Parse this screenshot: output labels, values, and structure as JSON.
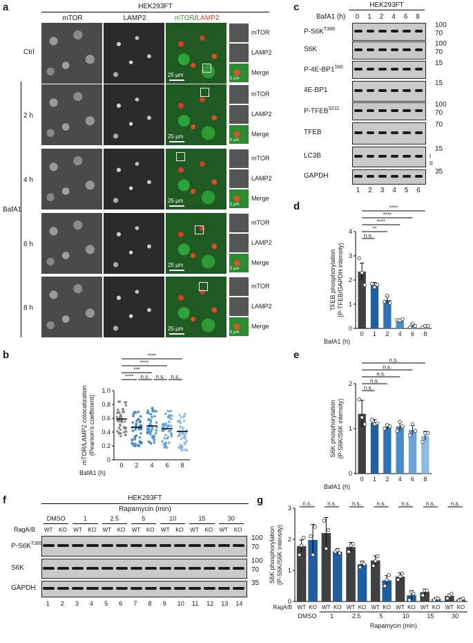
{
  "panel_labels": [
    "a",
    "b",
    "c",
    "d",
    "e",
    "f",
    "g"
  ],
  "panel_a": {
    "cell_line": "HEK293FT",
    "columns": [
      "mTOR",
      "LAMP2",
      "mTOR/LAMP2"
    ],
    "merge_parts": {
      "green": "mTOR",
      "red": "LAMP2"
    },
    "rows": [
      "Ctrl",
      "2 h",
      "4 h",
      "6 h",
      "8 h"
    ],
    "group_label": "BafA1",
    "inset_labels": [
      "mTOR",
      "LAMP2",
      "Merge"
    ],
    "scale_main": "25 µm",
    "scale_inset": "5 µm",
    "colors": {
      "green": "#2ba43a",
      "red": "#e23a2a"
    }
  },
  "panel_b": {
    "chart_data": {
      "type": "scatter",
      "categories": [
        "0",
        "2",
        "4",
        "6",
        "8"
      ],
      "xlabel": "BafA1 (h)",
      "ylabel": "mTOR/LAMP2 colocalization\n(Pearson's coefficient)",
      "ylim": [
        0,
        1.0
      ],
      "yticks": [
        "0",
        "0.2",
        "0.4",
        "0.6",
        "0.8",
        "1.0"
      ],
      "means": [
        0.59,
        0.47,
        0.49,
        0.45,
        0.41
      ],
      "colors": [
        "#7f7f7f",
        "#2b7bc4",
        "#3d8bd0",
        "#5a9ed8",
        "#7fb6e2"
      ],
      "significance": [
        {
          "from": "0",
          "to": "8",
          "label": "****"
        },
        {
          "from": "0",
          "to": "6",
          "label": "****"
        },
        {
          "from": "0",
          "to": "4",
          "label": "***"
        },
        {
          "from": "0",
          "to": "2",
          "label": "****"
        },
        {
          "from": "2",
          "to": "4",
          "label": "n.s."
        },
        {
          "from": "4",
          "to": "6",
          "label": "n.s."
        },
        {
          "from": "6",
          "to": "8",
          "label": "n.s."
        }
      ]
    }
  },
  "panel_c": {
    "cell_line": "HEK293FT",
    "header": "BafA1 (h)",
    "timepoints": [
      "0",
      "1",
      "2",
      "4",
      "6",
      "8"
    ],
    "lanes": [
      "1",
      "2",
      "3",
      "4",
      "5",
      "6"
    ],
    "blots": [
      {
        "label": "P-S6K",
        "sup": "T389",
        "mw": [
          "100",
          "70"
        ]
      },
      {
        "label": "S6K",
        "sup": "",
        "mw": [
          "100",
          "70"
        ]
      },
      {
        "label": "P-4E-BP1",
        "sup": "S65",
        "mw": [
          "15"
        ]
      },
      {
        "label": "4E-BP1",
        "sup": "",
        "mw": [
          "15"
        ]
      },
      {
        "label": "P-TFEB",
        "sup": "S211",
        "mw": [
          "100",
          "70"
        ]
      },
      {
        "label": "TFEB",
        "sup": "",
        "mw": [
          "70"
        ]
      },
      {
        "label": "LC3B",
        "sup": "",
        "mw": [
          "15"
        ]
      },
      {
        "label": "GAPDH",
        "sup": "",
        "mw": [
          "35"
        ]
      }
    ],
    "lc3_annot": [
      "I",
      "II"
    ]
  },
  "panel_d": {
    "chart_data": {
      "type": "bar",
      "categories": [
        "0",
        "1",
        "2",
        "4",
        "6",
        "8"
      ],
      "values": [
        2.35,
        1.78,
        1.17,
        0.35,
        0.12,
        0.08
      ],
      "errors": [
        0.35,
        0.12,
        0.15,
        0.03,
        0.06,
        0.04
      ],
      "points": [
        [
          2.9,
          2.3,
          1.8
        ],
        [
          1.85,
          1.7,
          1.8
        ],
        [
          1.1,
          1.35,
          1.05
        ],
        [
          0.35,
          0.33,
          0.38
        ],
        [
          0.05,
          0.2,
          0.1
        ],
        [
          0.05,
          0.1,
          0.1
        ]
      ],
      "xlabel": "BafA1 (h)",
      "ylabel": "TFEB phosphorylation\n(P-TFEB/GAPDH intensity)",
      "ylim": [
        0,
        4
      ],
      "yticks": [
        "0",
        "1",
        "2",
        "3",
        "4"
      ],
      "colors": [
        "#404040",
        "#1f5fa0",
        "#2f74b8",
        "#4a8cc8",
        "#6aa4d6",
        "#8cbbe2"
      ],
      "significance": [
        {
          "from": "0",
          "to": "8",
          "label": "****"
        },
        {
          "from": "0",
          "to": "6",
          "label": "****"
        },
        {
          "from": "0",
          "to": "4",
          "label": "****"
        },
        {
          "from": "0",
          "to": "2",
          "label": "**"
        },
        {
          "from": "0",
          "to": "1",
          "label": "n.s."
        }
      ]
    }
  },
  "panel_e": {
    "chart_data": {
      "type": "bar",
      "categories": [
        "0",
        "1",
        "2",
        "4",
        "6",
        "8"
      ],
      "values": [
        1.33,
        1.14,
        1.04,
        1.05,
        0.97,
        0.84
      ],
      "errors": [
        0.3,
        0.06,
        0.06,
        0.1,
        0.1,
        0.1
      ],
      "points": [
        [
          1.65,
          1.25,
          1.1
        ],
        [
          1.2,
          1.1,
          1.12
        ],
        [
          1.0,
          1.08,
          1.05
        ],
        [
          0.95,
          1.15,
          1.05
        ],
        [
          0.85,
          1.1,
          0.95
        ],
        [
          0.7,
          0.9,
          0.9
        ]
      ],
      "xlabel": "BafA1 (h)",
      "ylabel": "S6K phosphorylation\n(P-S6K/S6K intensity)",
      "ylim": [
        0,
        2
      ],
      "yticks": [
        "0",
        "1",
        "2"
      ],
      "colors": [
        "#404040",
        "#1f5fa0",
        "#2f74b8",
        "#4a8cc8",
        "#6aa4d6",
        "#8cbbe2"
      ],
      "significance": [
        {
          "from": "0",
          "to": "8",
          "label": "n.s."
        },
        {
          "from": "0",
          "to": "6",
          "label": "n.s."
        },
        {
          "from": "0",
          "to": "4",
          "label": "n.s."
        },
        {
          "from": "0",
          "to": "2",
          "label": "n.s."
        },
        {
          "from": "0",
          "to": "1",
          "label": "n.s."
        }
      ]
    }
  },
  "panel_f": {
    "cell_line": "HEK293FT",
    "treatment": "Rapamycin (min)",
    "conditions": [
      "DMSO",
      "1",
      "2.5",
      "5",
      "10",
      "15",
      "30"
    ],
    "row_label": "RagA/B",
    "genotypes": [
      "WT",
      "KO"
    ],
    "lanes": [
      "1",
      "2",
      "3",
      "4",
      "5",
      "6",
      "7",
      "8",
      "9",
      "10",
      "11",
      "12",
      "13",
      "14"
    ],
    "blots": [
      {
        "label": "P-S6K",
        "sup": "T389",
        "mw": [
          "100",
          "70"
        ]
      },
      {
        "label": "S6K",
        "sup": "",
        "mw": [
          "100",
          "70"
        ]
      },
      {
        "label": "GAPDH",
        "sup": "",
        "mw": [
          "35"
        ]
      }
    ]
  },
  "panel_g": {
    "chart_data": {
      "type": "bar",
      "categories": [
        "DMSO",
        "1",
        "2.5",
        "5",
        "10",
        "15",
        "30"
      ],
      "xlabel": "Rapamycin (min)",
      "row_label": "RagA/B",
      "ylabel": "S6K phosphorylation\n(P-S6K/S6K intensity)",
      "ylim": [
        0,
        3
      ],
      "yticks": [
        "0",
        "1",
        "2",
        "3"
      ],
      "series": [
        {
          "name": "WT",
          "values": [
            1.78,
            2.2,
            1.75,
            1.32,
            0.8,
            0.3,
            0.18
          ],
          "errors": [
            0.2,
            0.5,
            0.15,
            0.15,
            0.12,
            0.1,
            0.06
          ]
        },
        {
          "name": "KO",
          "values": [
            1.98,
            1.6,
            1.2,
            0.68,
            0.2,
            0.08,
            0.06
          ],
          "errors": [
            0.5,
            0.1,
            0.1,
            0.15,
            0.15,
            0.05,
            0.05
          ]
        }
      ],
      "points_wt": [
        [
          1.5,
          1.8,
          2.05
        ],
        [
          2.6,
          1.7,
          2.3
        ],
        [
          1.6,
          1.8,
          1.85
        ],
        [
          1.15,
          1.3,
          1.45
        ],
        [
          0.7,
          0.8,
          0.9
        ],
        [
          0.2,
          0.35,
          0.35
        ],
        [
          0.1,
          0.2,
          0.25
        ]
      ],
      "points_ko": [
        [
          2.1,
          1.5,
          2.4
        ],
        [
          1.6,
          1.65,
          1.55
        ],
        [
          1.1,
          1.25,
          1.2
        ],
        [
          0.5,
          0.7,
          0.85
        ],
        [
          0.05,
          0.3,
          0.25
        ],
        [
          0.05,
          0.1,
          0.1
        ],
        [
          0.03,
          0.05,
          0.1
        ]
      ],
      "colors": {
        "WT": "#404040",
        "KO": "#1f5fa0"
      },
      "significance": [
        "n.s.",
        "n.s.",
        "n.s.",
        "n.s.",
        "n.s.",
        "n.s.",
        "n.s."
      ]
    }
  }
}
